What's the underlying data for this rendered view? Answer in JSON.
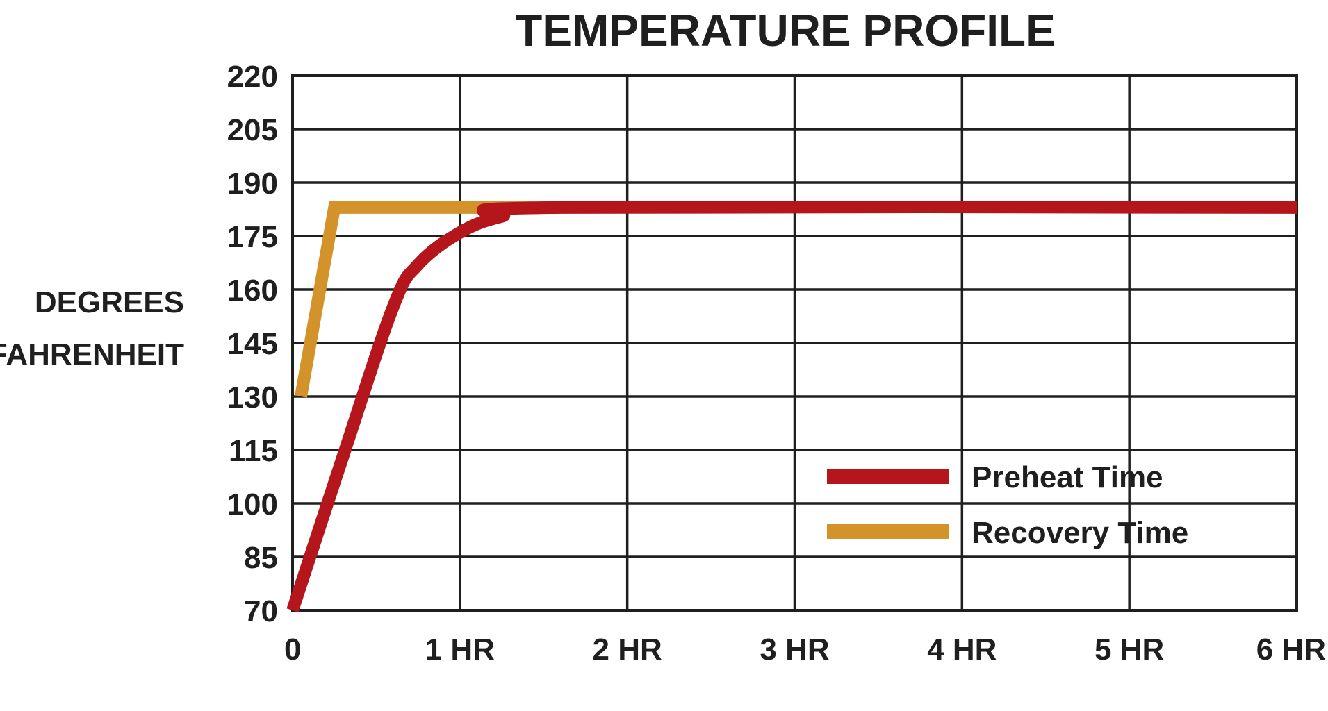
{
  "chart_data": {
    "type": "line",
    "title": "TEMPERATURE PROFILE",
    "ylabel_lines": [
      "DEGREES",
      "FAHRENHEIT"
    ],
    "xlabel": "",
    "x_ticks": [
      {
        "value": 0,
        "label": "0"
      },
      {
        "value": 1,
        "label": "1 HR"
      },
      {
        "value": 2,
        "label": "2 HR"
      },
      {
        "value": 3,
        "label": "3 HR"
      },
      {
        "value": 4,
        "label": "4 HR"
      },
      {
        "value": 5,
        "label": "5 HR"
      },
      {
        "value": 6,
        "label": "6 HR"
      }
    ],
    "y_ticks": [
      70,
      85,
      100,
      115,
      130,
      145,
      160,
      175,
      190,
      205,
      220
    ],
    "xlim": [
      0,
      6
    ],
    "ylim": [
      70,
      220
    ],
    "grid": true,
    "legend_position": "bottom-right",
    "series": [
      {
        "name": "Preheat Time",
        "color": "#b4161c",
        "points": [
          [
            0,
            70
          ],
          [
            0.3,
            113
          ],
          [
            0.6,
            155
          ],
          [
            0.75,
            167
          ],
          [
            1.0,
            176
          ],
          [
            1.25,
            180.5
          ],
          [
            1.6,
            183
          ],
          [
            6,
            183
          ]
        ]
      },
      {
        "name": "Recovery Time",
        "color": "#d4922b",
        "points": [
          [
            0.05,
            130
          ],
          [
            0.25,
            183
          ],
          [
            1.6,
            183
          ]
        ]
      }
    ]
  }
}
